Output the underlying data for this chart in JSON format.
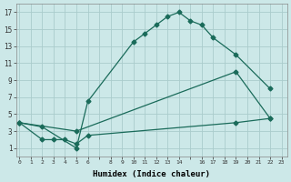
{
  "xlabel": "Humidex (Indice chaleur)",
  "background_color": "#cce8e8",
  "grid_color": "#aacccc",
  "line_color": "#1a6b5a",
  "series": [
    {
      "x": [
        0,
        2,
        5,
        6,
        10,
        11,
        12,
        13,
        14,
        15,
        16,
        17,
        18,
        19,
        20,
        22,
        23
      ],
      "y": [
        4,
        3.5,
        null,
        null,
        null,
        null,
        null,
        null,
        null,
        null,
        null,
        null,
        null,
        null,
        null,
        null,
        null
      ]
    }
  ],
  "series3": [
    {
      "x": [
        0,
        2,
        5,
        6,
        10,
        11,
        12,
        13,
        14,
        15,
        16,
        17,
        19,
        22
      ],
      "y": [
        4,
        3.5,
        1,
        6.5,
        13.5,
        14.5,
        15.5,
        16.5,
        17,
        16,
        15.5,
        14,
        12,
        8
      ]
    },
    {
      "x": [
        0,
        5,
        19,
        22
      ],
      "y": [
        4,
        3,
        10,
        4.5
      ]
    },
    {
      "x": [
        0,
        2,
        3,
        4,
        5,
        6,
        19,
        22
      ],
      "y": [
        4,
        2,
        2,
        2,
        1.5,
        2.5,
        4,
        4.5
      ]
    }
  ],
  "xlim": [
    0,
    23
  ],
  "ylim": [
    0,
    18
  ],
  "yticks": [
    1,
    3,
    5,
    7,
    9,
    11,
    13,
    15,
    17
  ],
  "xticks_labels": [
    "0",
    "1",
    "2",
    "3",
    "4",
    "5",
    "6",
    "",
    "8",
    "9",
    "10",
    "11",
    "12",
    "13",
    "14",
    "",
    "16",
    "17",
    "18",
    "19",
    "20",
    "21",
    "22",
    "23"
  ],
  "xticks_pos": [
    0,
    1,
    2,
    3,
    4,
    5,
    6,
    7,
    8,
    9,
    10,
    11,
    12,
    13,
    14,
    15,
    16,
    17,
    18,
    19,
    20,
    21,
    22,
    23
  ]
}
